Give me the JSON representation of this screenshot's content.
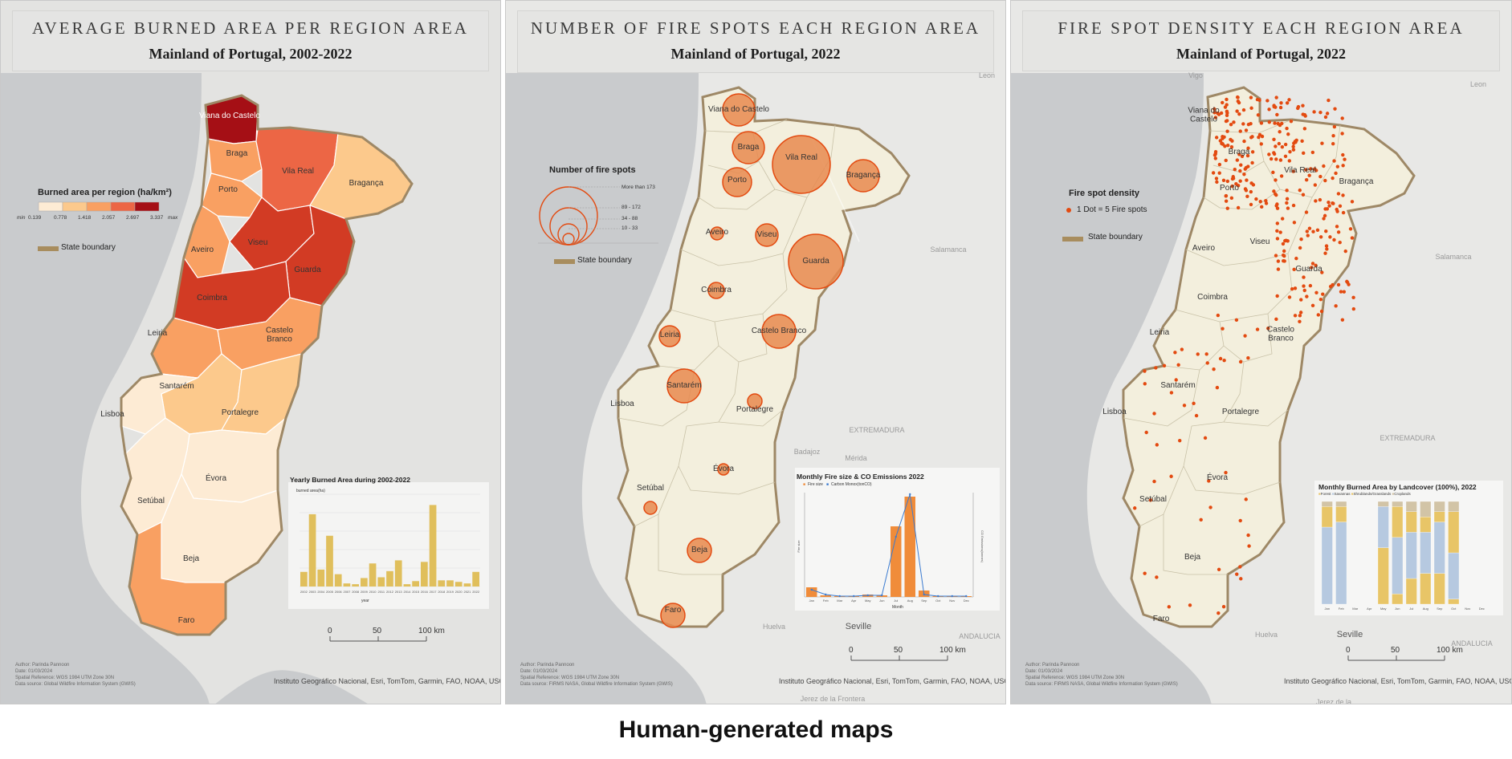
{
  "caption": "Human-generated maps",
  "panels": [
    {
      "title": "AVERAGE BURNED AREA PER REGION AREA",
      "subtitle": "Mainland of Portugal, 2002-2022",
      "legend_title": "Burned area per region (ha/km²)",
      "legend_breaks": [
        "0.139",
        "0.778",
        "1.418",
        "2.057",
        "2.697",
        "3.337"
      ],
      "legend_min": "min",
      "legend_max": "max",
      "legend_colors": [
        "#fdebd4",
        "#fcc98c",
        "#f9a062",
        "#ec6645",
        "#d23b24",
        "#a50f15"
      ],
      "state_boundary": "State boundary",
      "scale": [
        "0",
        "50",
        "100 km"
      ],
      "credit": "Instituto Geográfico Nacional, Esri, TomTom, Garmin, FAO, NOAA, USGS",
      "meta": [
        "Author: Parinda Pannoon",
        "Date: 01/03/2024",
        "Spatial Reference: WGS 1984 UTM Zone 30N",
        "Data source: Global Wildfire Information System (GWIS)"
      ],
      "regions": [
        "Viana do Castelo",
        "Braga",
        "Vila Real",
        "Bragança",
        "Porto",
        "Aveiro",
        "Viseu",
        "Guarda",
        "Coimbra",
        "Leiria",
        "Castelo Branco",
        "Santarém",
        "Lisboa",
        "Portalegre",
        "Évora",
        "Setúbal",
        "Beja",
        "Faro"
      ]
    },
    {
      "title": "NUMBER OF FIRE SPOTS EACH REGION AREA",
      "subtitle": "Mainland of Portugal, 2022",
      "legend_title": "Number of fire spots",
      "legend_classes": [
        "More than 173",
        "89 - 172",
        "34 - 88",
        "10 - 33"
      ],
      "state_boundary": "State boundary",
      "scale": [
        "0",
        "50",
        "100 km"
      ],
      "credit": "Instituto Geográfico Nacional, Esri, TomTom, Garmin, FAO, NOAA, USGS",
      "meta": [
        "Author: Parinda Pannoon",
        "Date: 01/03/2024",
        "Spatial Reference: WGS 1984 UTM Zone 30N",
        "Data source: FIRMS NASA, Global Wildfire Information System (GWIS)"
      ],
      "places": [
        "Leon",
        "Salamanca",
        "EXTREMADURA",
        "Mérida",
        "Badajoz",
        "Huelva",
        "Seville",
        "ANDALUCIA",
        "Jerez de la Frontera"
      ],
      "regions": [
        "Viana do Castelo",
        "Braga",
        "Vila Real",
        "Bragança",
        "Porto",
        "Aveiro",
        "Viseu",
        "Guarda",
        "Coimbra",
        "Leiria",
        "Castelo Branco",
        "Santarém",
        "Lisboa",
        "Portalegre",
        "Évora",
        "Setúbal",
        "Beja",
        "Faro"
      ]
    },
    {
      "title": "FIRE SPOT DENSITY EACH REGION AREA",
      "subtitle": "Mainland of Portugal, 2022",
      "legend_title": "Fire spot density",
      "legend_dot": "1 Dot = 5 Fire spots",
      "state_boundary": "State boundary",
      "scale": [
        "0",
        "50",
        "100 km"
      ],
      "credit": "Instituto Geográfico Nacional, Esri, TomTom, Garmin, FAO, NOAA, USGS",
      "meta": [
        "Author: Parinda Pannoon",
        "Date: 01/03/2024",
        "Spatial Reference: WGS 1984 UTM Zone 30N",
        "Data source: FIRMS NASA, Global Wildfire Information System (GWIS)"
      ],
      "places": [
        "Vigo",
        "Leon",
        "Salamanca",
        "EXTREMADURA",
        "Huelva",
        "Seville",
        "ANDALUCIA",
        "Jerez de la"
      ],
      "regions": [
        "Viana do Castelo",
        "Braga",
        "Vila Real",
        "Bragança",
        "Porto",
        "Aveiro",
        "Viseu",
        "Guarda",
        "Coimbra",
        "Leiria",
        "Castelo Branco",
        "Santarém",
        "Lisboa",
        "Portalegre",
        "Évora",
        "Setúbal",
        "Beja",
        "Faro"
      ]
    }
  ],
  "chart_data": [
    {
      "type": "bar",
      "title": "Yearly Burned Area during 2002-2022",
      "ylabel": "burned area(ha)",
      "xlabel": "year",
      "categories": [
        "2002",
        "2003",
        "2004",
        "2005",
        "2006",
        "2007",
        "2008",
        "2009",
        "2010",
        "2011",
        "2012",
        "2013",
        "2014",
        "2015",
        "2016",
        "2017",
        "2018",
        "2019",
        "2020",
        "2021",
        "2022"
      ],
      "values": [
        95000,
        470000,
        110000,
        330000,
        80000,
        20000,
        15000,
        55000,
        150000,
        60000,
        100000,
        170000,
        15000,
        35000,
        160000,
        530000,
        40000,
        40000,
        30000,
        20000,
        95000
      ],
      "ylim": [
        0,
        600000
      ],
      "color": "#e0bf5c"
    },
    {
      "type": "bar",
      "title": "Monthly Fire size & CO Emissions 2022",
      "xlabel": "Month",
      "ylabel": "Fire size",
      "y2label": "CO Emissions(tonnes)",
      "categories": [
        "Jan",
        "Feb",
        "Mar",
        "Apr",
        "May",
        "Jun",
        "Jul",
        "Aug",
        "Sep",
        "Oct",
        "Nov",
        "Dec"
      ],
      "series": [
        {
          "name": "Fire size",
          "type": "bar",
          "color": "#f08c3a",
          "values": [
            12,
            2,
            1,
            1,
            3,
            2,
            88,
            125,
            8,
            1,
            1,
            1
          ]
        },
        {
          "name": "Carbon Monox(tonCO)",
          "type": "line",
          "color": "#3b7bd0",
          "values": [
            9,
            3,
            1,
            1,
            2,
            2,
            75,
            128,
            3,
            1,
            1,
            1
          ]
        }
      ]
    },
    {
      "type": "bar",
      "title": "Monthly Burned Area by Landcover (100%), 2022",
      "categories": [
        "Jan",
        "Feb",
        "Mar",
        "Apr",
        "May",
        "Jun",
        "Jul",
        "Aug",
        "Sep",
        "Oct",
        "Nov",
        "Dec"
      ],
      "series": [
        {
          "name": "Forest",
          "color": "#e8c567",
          "values": [
            0,
            0,
            0,
            0,
            55,
            10,
            25,
            30,
            30,
            5,
            0,
            0
          ]
        },
        {
          "name": "Savannas",
          "color": "#b6c9e0",
          "values": [
            75,
            80,
            0,
            0,
            40,
            55,
            45,
            40,
            50,
            45,
            0,
            0
          ]
        },
        {
          "name": "Shrublands/Grasslands",
          "color": "#e8c567",
          "values": [
            20,
            15,
            0,
            0,
            0,
            30,
            20,
            15,
            10,
            40,
            0,
            0
          ]
        },
        {
          "name": "Croplands",
          "color": "#d2c4a6",
          "values": [
            5,
            5,
            0,
            0,
            5,
            5,
            10,
            15,
            10,
            10,
            0,
            0
          ]
        }
      ]
    }
  ]
}
